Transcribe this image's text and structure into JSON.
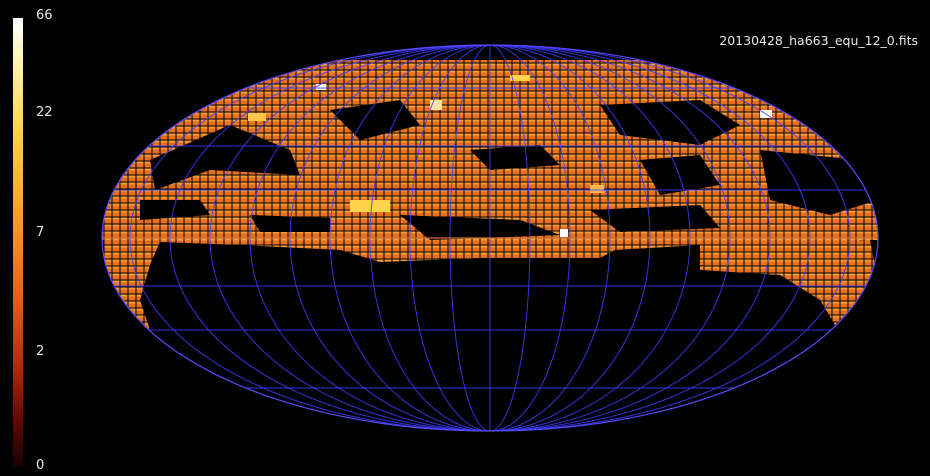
{
  "title": "20130428_ha663_equ_12_0.fits",
  "colorbar": {
    "ticks": [
      "66",
      "22",
      "7",
      "2",
      "0"
    ],
    "colors": [
      "#ffffff",
      "#ffd34a",
      "#ff9a2a",
      "#b02a08",
      "#1a0000"
    ]
  },
  "map": {
    "projection": "mollweide-style ellipse",
    "grid_color": "#3c3cff",
    "equator_color": "#d06a3a",
    "cell_color": "#e8701c",
    "background": "#000000"
  }
}
